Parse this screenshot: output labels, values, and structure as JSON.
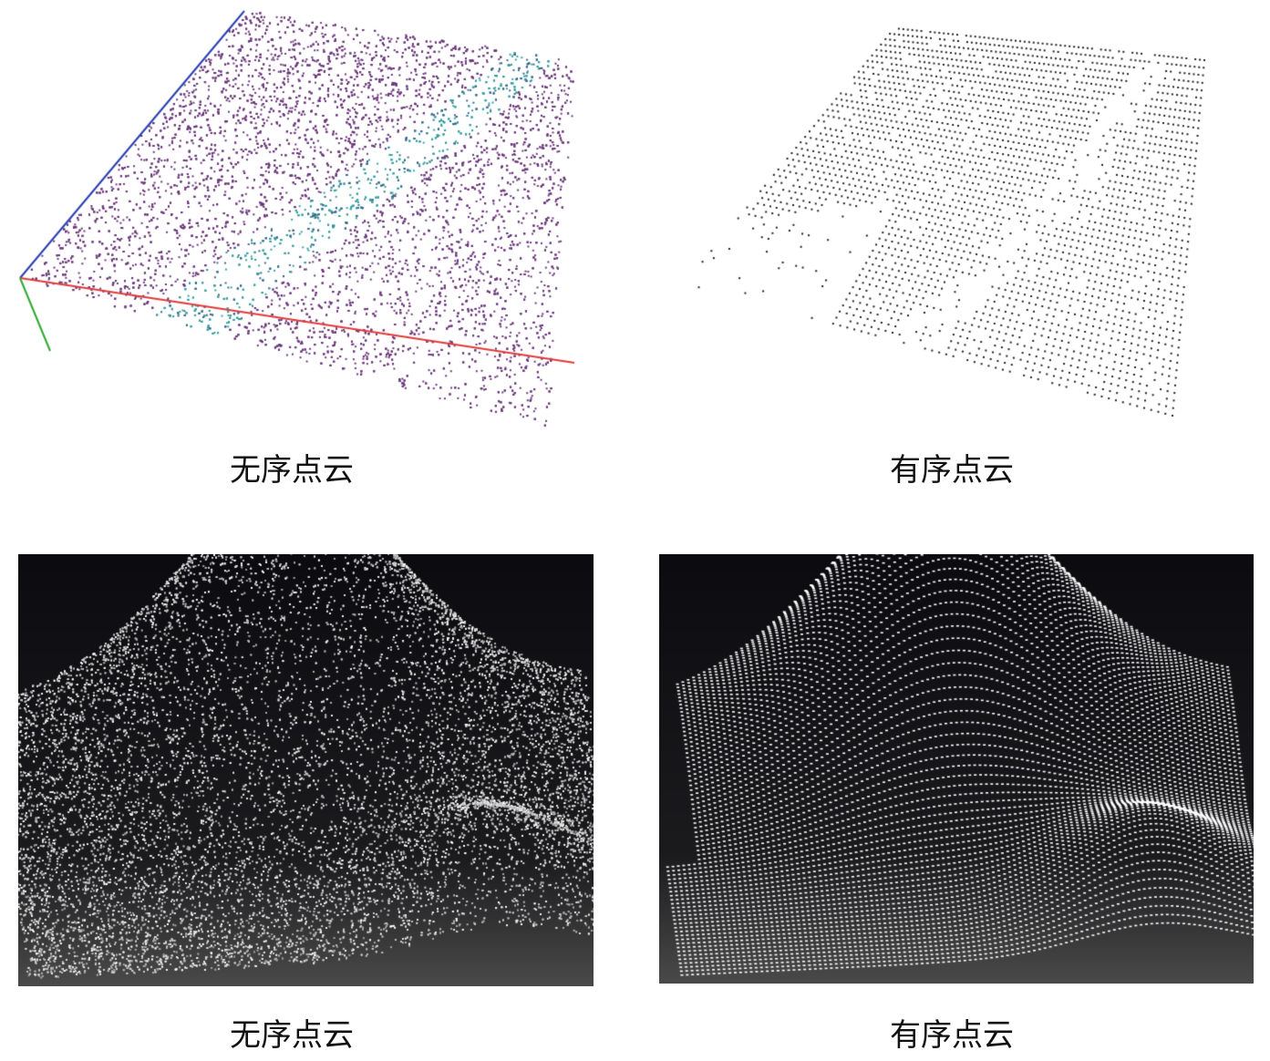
{
  "panels": [
    {
      "id": "tl",
      "caption": "无序点云",
      "style": "unordered-colored-with-axes"
    },
    {
      "id": "tr",
      "caption": "有序点云",
      "style": "ordered-black-dots"
    },
    {
      "id": "bl",
      "caption": "无序点云",
      "style": "unordered-dense-surface-dark-bg"
    },
    {
      "id": "br",
      "caption": "有序点云",
      "style": "ordered-mesh-surface-dark-bg"
    }
  ],
  "colors": {
    "axis_x": "#e03a3a",
    "axis_y": "#2a3fb0",
    "axis_z": "#2ea82e",
    "point_purple": "#6b3a7a",
    "point_teal": "#3aa0a0",
    "point_black": "#222222",
    "bg_dark": "#111111"
  }
}
